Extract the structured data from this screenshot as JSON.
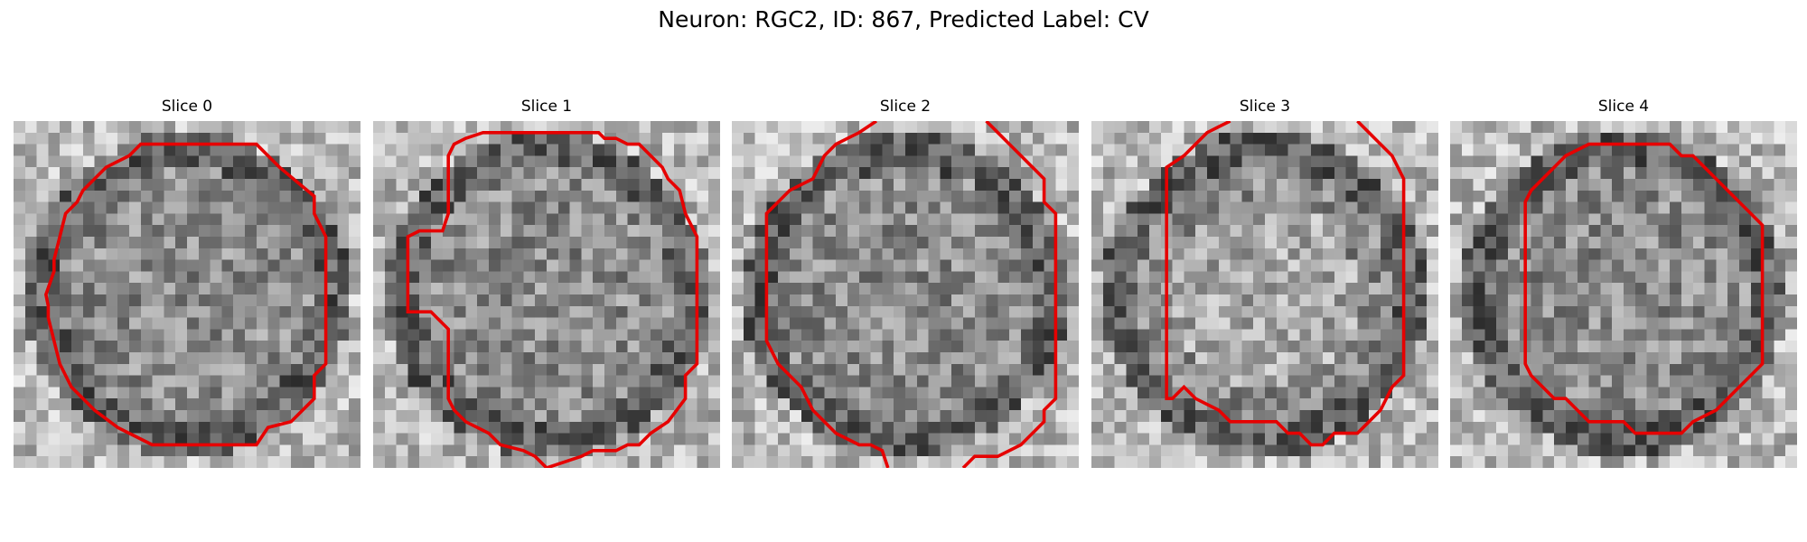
{
  "figure": {
    "title": "Neuron: RGC2, ID: 867, Predicted Label: CV"
  },
  "colors": {
    "contour": "#e60000",
    "colormap": "gray"
  },
  "panels": [
    {
      "title": "Slice 0",
      "contour": "cell-outline"
    },
    {
      "title": "Slice 1",
      "contour": "cell-outline"
    },
    {
      "title": "Slice 2",
      "contour": "cell-outline"
    },
    {
      "title": "Slice 3",
      "contour": "cell-outline"
    },
    {
      "title": "Slice 4",
      "contour": "cell-outline"
    }
  ]
}
